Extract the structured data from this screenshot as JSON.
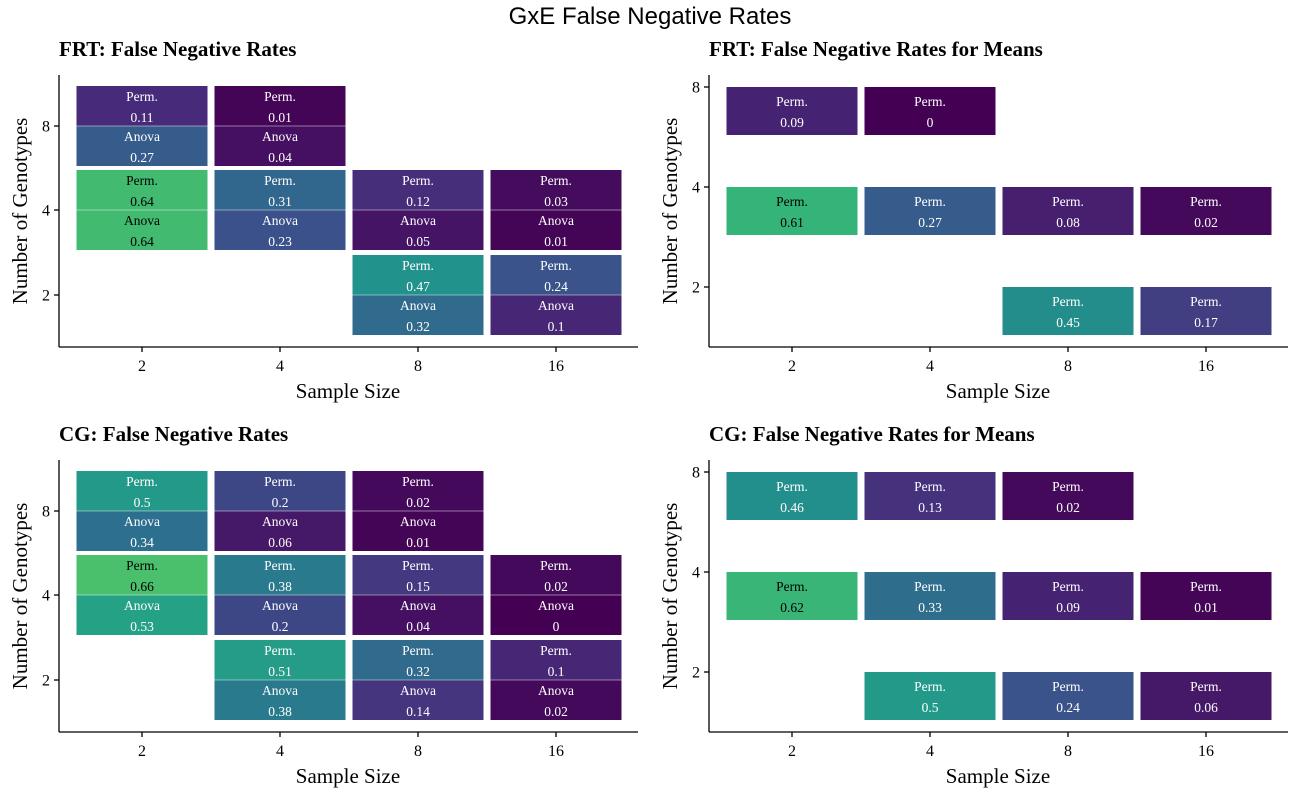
{
  "figure_title": "GxE False Negative Rates",
  "colors": {
    "scale": [
      "#440154",
      "#472d7b",
      "#3b528b",
      "#2c728e",
      "#21918c",
      "#28ae80",
      "#5ec962"
    ],
    "divider": "#ffffff"
  },
  "chart_data": [
    {
      "type": "heatmap",
      "title": "FRT: False Negative Rates",
      "xlabel": "Sample Size",
      "ylabel": "Number of Genotypes",
      "x_ticks": [
        "2",
        "4",
        "8",
        "16"
      ],
      "y_ticks": [
        "2",
        "4",
        "8"
      ],
      "cells": [
        {
          "x": 2,
          "y": 8,
          "perm": "0.11",
          "anova": "0.27"
        },
        {
          "x": 4,
          "y": 8,
          "perm": "0.01",
          "anova": "0.04"
        },
        {
          "x": 2,
          "y": 4,
          "perm": "0.64",
          "anova": "0.64"
        },
        {
          "x": 4,
          "y": 4,
          "perm": "0.31",
          "anova": "0.23"
        },
        {
          "x": 8,
          "y": 4,
          "perm": "0.12",
          "anova": "0.05"
        },
        {
          "x": 16,
          "y": 4,
          "perm": "0.03",
          "anova": "0.01"
        },
        {
          "x": 8,
          "y": 2,
          "perm": "0.47",
          "anova": "0.32"
        },
        {
          "x": 16,
          "y": 2,
          "perm": "0.24",
          "anova": "0.1"
        }
      ],
      "perm_label": "Perm.",
      "anova_label": "Anova"
    },
    {
      "type": "heatmap",
      "title": "FRT: False Negative Rates for Means",
      "xlabel": "Sample Size",
      "ylabel": "Number of Genotypes",
      "x_ticks": [
        "2",
        "4",
        "8",
        "16"
      ],
      "y_ticks": [
        "2",
        "4",
        "8"
      ],
      "cells": [
        {
          "x": 2,
          "y": 8,
          "perm": "0.09"
        },
        {
          "x": 4,
          "y": 8,
          "perm": "0"
        },
        {
          "x": 2,
          "y": 4,
          "perm": "0.61"
        },
        {
          "x": 4,
          "y": 4,
          "perm": "0.27"
        },
        {
          "x": 8,
          "y": 4,
          "perm": "0.08"
        },
        {
          "x": 16,
          "y": 4,
          "perm": "0.02"
        },
        {
          "x": 8,
          "y": 2,
          "perm": "0.45"
        },
        {
          "x": 16,
          "y": 2,
          "perm": "0.17"
        }
      ],
      "perm_label": "Perm."
    },
    {
      "type": "heatmap",
      "title": "CG: False Negative Rates",
      "xlabel": "Sample Size",
      "ylabel": "Number of Genotypes",
      "x_ticks": [
        "2",
        "4",
        "8",
        "16"
      ],
      "y_ticks": [
        "2",
        "4",
        "8"
      ],
      "cells": [
        {
          "x": 2,
          "y": 8,
          "perm": "0.5",
          "anova": "0.34"
        },
        {
          "x": 4,
          "y": 8,
          "perm": "0.2",
          "anova": "0.06"
        },
        {
          "x": 8,
          "y": 8,
          "perm": "0.02",
          "anova": "0.01"
        },
        {
          "x": 2,
          "y": 4,
          "perm": "0.66",
          "anova": "0.53"
        },
        {
          "x": 4,
          "y": 4,
          "perm": "0.38",
          "anova": "0.2"
        },
        {
          "x": 8,
          "y": 4,
          "perm": "0.15",
          "anova": "0.04"
        },
        {
          "x": 16,
          "y": 4,
          "perm": "0.02",
          "anova": "0"
        },
        {
          "x": 4,
          "y": 2,
          "perm": "0.51",
          "anova": "0.38"
        },
        {
          "x": 8,
          "y": 2,
          "perm": "0.32",
          "anova": "0.14"
        },
        {
          "x": 16,
          "y": 2,
          "perm": "0.1",
          "anova": "0.02"
        }
      ],
      "perm_label": "Perm.",
      "anova_label": "Anova"
    },
    {
      "type": "heatmap",
      "title": "CG: False Negative Rates for Means",
      "xlabel": "Sample Size",
      "ylabel": "Number of Genotypes",
      "x_ticks": [
        "2",
        "4",
        "8",
        "16"
      ],
      "y_ticks": [
        "2",
        "4",
        "8"
      ],
      "cells": [
        {
          "x": 2,
          "y": 8,
          "perm": "0.46"
        },
        {
          "x": 4,
          "y": 8,
          "perm": "0.13"
        },
        {
          "x": 8,
          "y": 8,
          "perm": "0.02"
        },
        {
          "x": 2,
          "y": 4,
          "perm": "0.62"
        },
        {
          "x": 4,
          "y": 4,
          "perm": "0.33"
        },
        {
          "x": 8,
          "y": 4,
          "perm": "0.09"
        },
        {
          "x": 16,
          "y": 4,
          "perm": "0.01"
        },
        {
          "x": 4,
          "y": 2,
          "perm": "0.5"
        },
        {
          "x": 8,
          "y": 2,
          "perm": "0.24"
        },
        {
          "x": 16,
          "y": 2,
          "perm": "0.06"
        }
      ],
      "perm_label": "Perm."
    }
  ]
}
